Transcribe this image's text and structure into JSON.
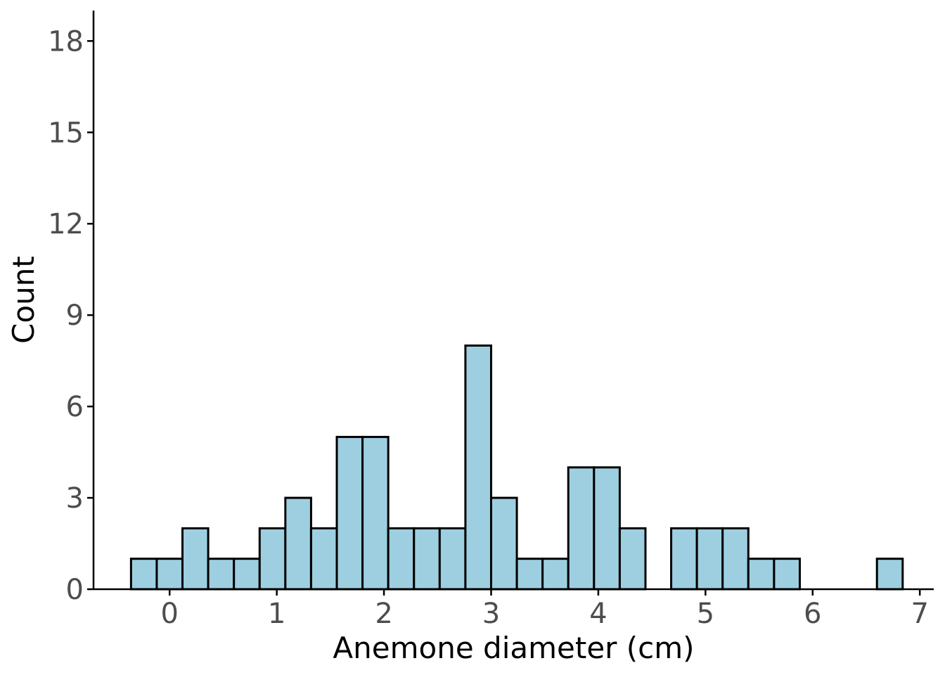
{
  "chart_data": {
    "type": "bar",
    "xlabel": "Anemone diameter (cm)",
    "ylabel": "Count",
    "bar_fill": "#9ecfe0",
    "bar_stroke": "#000000",
    "bin_width": 0.24,
    "bins": [
      {
        "x": -0.24,
        "count": 1
      },
      {
        "x": 0.0,
        "count": 1
      },
      {
        "x": 0.24,
        "count": 2
      },
      {
        "x": 0.48,
        "count": 1
      },
      {
        "x": 0.72,
        "count": 1
      },
      {
        "x": 0.96,
        "count": 2
      },
      {
        "x": 1.2,
        "count": 3
      },
      {
        "x": 1.44,
        "count": 2
      },
      {
        "x": 1.68,
        "count": 5
      },
      {
        "x": 1.92,
        "count": 5
      },
      {
        "x": 2.16,
        "count": 2
      },
      {
        "x": 2.4,
        "count": 2
      },
      {
        "x": 2.64,
        "count": 2
      },
      {
        "x": 2.88,
        "count": 8
      },
      {
        "x": 3.12,
        "count": 3
      },
      {
        "x": 3.36,
        "count": 1
      },
      {
        "x": 3.6,
        "count": 1
      },
      {
        "x": 3.84,
        "count": 4
      },
      {
        "x": 4.08,
        "count": 4
      },
      {
        "x": 4.32,
        "count": 2
      },
      {
        "x": 4.56,
        "count": 0
      },
      {
        "x": 4.8,
        "count": 2
      },
      {
        "x": 5.04,
        "count": 2
      },
      {
        "x": 5.28,
        "count": 2
      },
      {
        "x": 5.52,
        "count": 1
      },
      {
        "x": 5.76,
        "count": 1
      },
      {
        "x": 6.0,
        "count": 0
      },
      {
        "x": 6.24,
        "count": 0
      },
      {
        "x": 6.48,
        "count": 0
      },
      {
        "x": 6.72,
        "count": 1
      }
    ],
    "xlim": [
      -0.71,
      7.13
    ],
    "ylim": [
      0,
      19
    ],
    "xticks": [
      0,
      1,
      2,
      3,
      4,
      5,
      6,
      7
    ],
    "xtick_labels": [
      "0",
      "1",
      "2",
      "3",
      "4",
      "5",
      "6",
      "7"
    ],
    "yticks": [
      0,
      3,
      6,
      9,
      12,
      15,
      18
    ],
    "ytick_labels": [
      "0",
      "3",
      "6",
      "9",
      "12",
      "15",
      "18"
    ],
    "grid": false
  }
}
